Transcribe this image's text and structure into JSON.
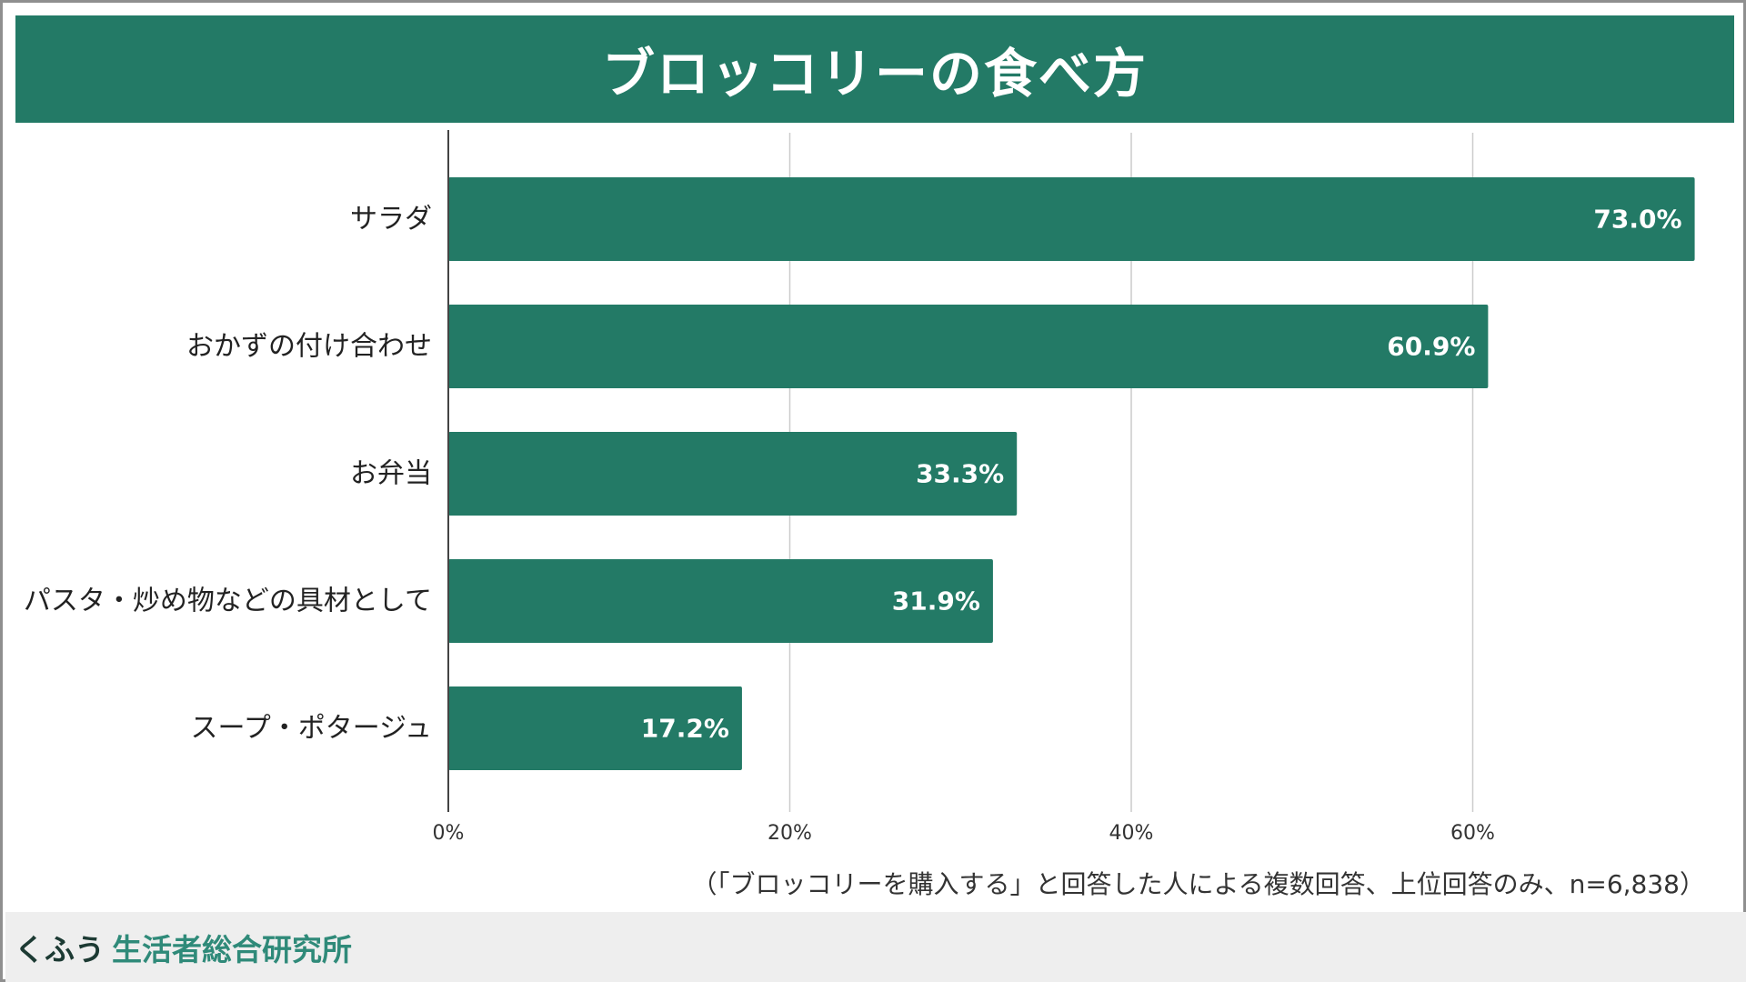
{
  "colors": {
    "accent": "#237a66",
    "grid": "#cccccc",
    "axis": "#444444",
    "text": "#222222",
    "footer_bg": "#eeeeee",
    "footer_org_primary": "#1c3a33",
    "footer_org_secondary": "#2f8a79"
  },
  "header": {
    "title": "ブロッコリーの食べ方"
  },
  "footnote": "（「ブロッコリーを購入する」と回答した人による複数回答、上位回答のみ、n=6,838）",
  "footer": {
    "org_part1": "くふう",
    "org_part2": "生活者総合研究所"
  },
  "chart_data": {
    "type": "bar",
    "orientation": "horizontal",
    "categories": [
      "サラダ",
      "おかずの付け合わせ",
      "お弁当",
      "パスタ・炒め物などの具材として",
      "スープ・ポタージュ"
    ],
    "values": [
      73.0,
      60.9,
      33.3,
      31.9,
      17.2
    ],
    "value_labels": [
      "73.0%",
      "60.9%",
      "33.3%",
      "31.9%",
      "17.2%"
    ],
    "xlim": [
      0,
      73
    ],
    "x_ticks": [
      0,
      20,
      40,
      60
    ],
    "x_tick_labels": [
      "0%",
      "20%",
      "40%",
      "60%"
    ],
    "grid": true,
    "legend": "none"
  }
}
